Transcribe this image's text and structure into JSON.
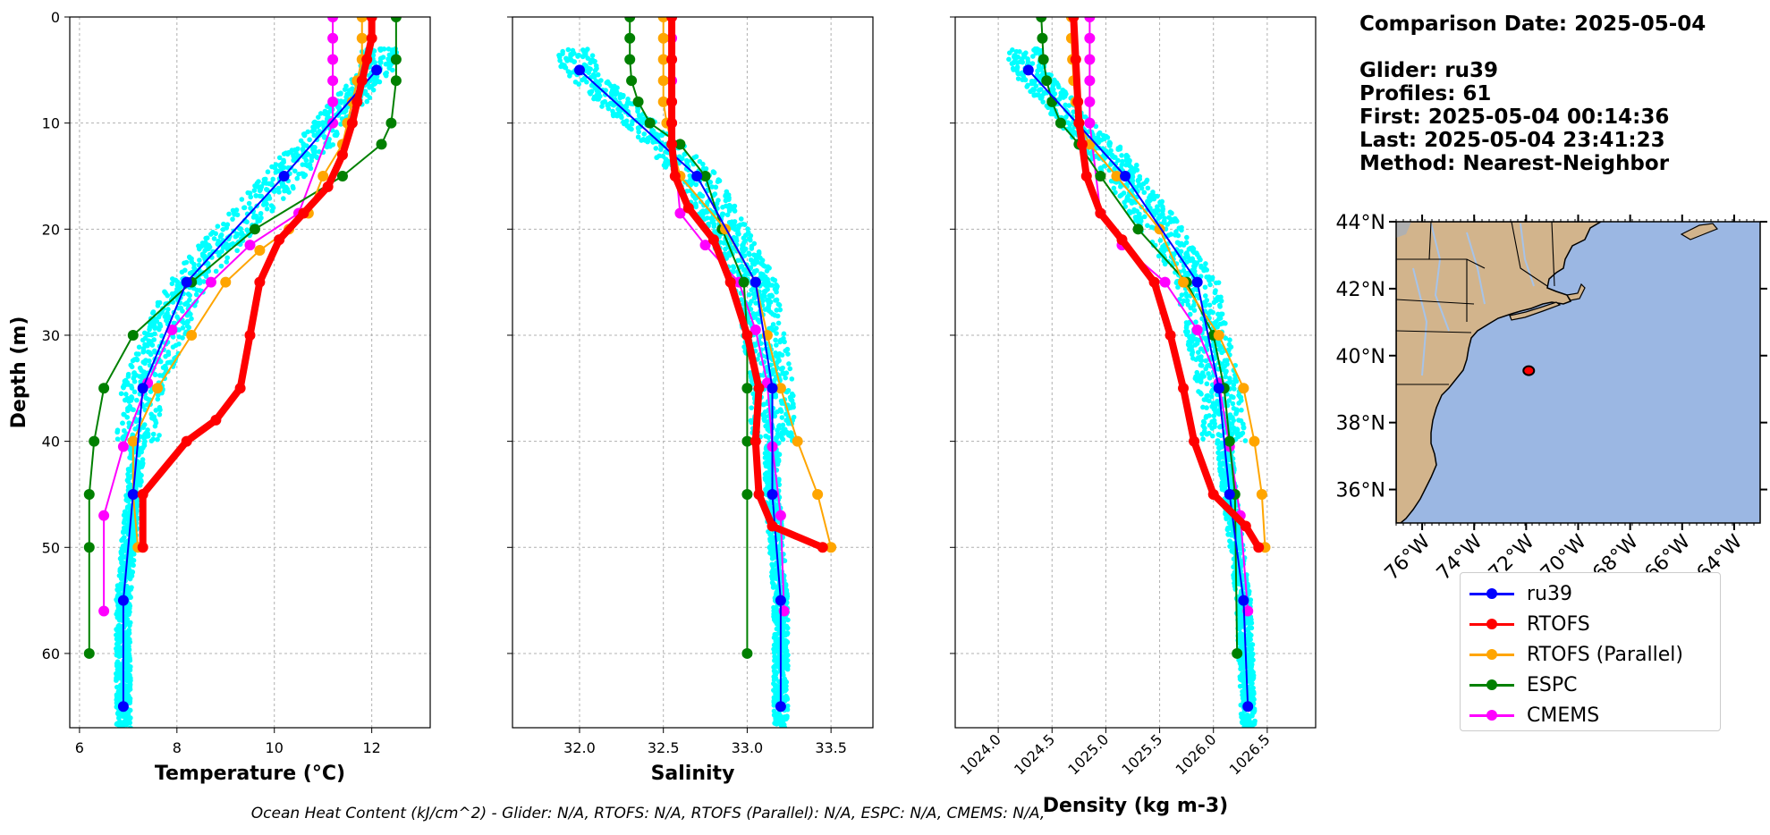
{
  "info": {
    "date_line": "Comparison Date: 2025-05-04",
    "glider_line": "Glider: ru39",
    "profiles_line": "Profiles: 61",
    "first_line": "First: 2025-05-04 00:14:36",
    "last_line": "Last: 2025-05-04 23:41:23",
    "method_line": "Method: Nearest-Neighbor"
  },
  "footer": "Ocean Heat Content (kJ/cm^2) - Glider: N/A,  RTOFS: N/A,  RTOFS (Parallel): N/A,  ESPC: N/A,  CMEMS: N/A,",
  "colors": {
    "ru39": "#0000ff",
    "RTOFS": "#ff0000",
    "RTOFS (Parallel)": "#ffa500",
    "ESPC": "#008000",
    "CMEMS": "#ff00ff",
    "scatter": "#00ffff",
    "land": "#d2b48c",
    "ocean": "#9bb7e3",
    "river": "#a6c3e8"
  },
  "legend": [
    "ru39",
    "RTOFS",
    "RTOFS (Parallel)",
    "ESPC",
    "CMEMS"
  ],
  "chart_data": [
    {
      "type": "line",
      "xlabel": "Temperature (°C)",
      "ylabel": "Depth (m)",
      "xlim": [
        5.8,
        13.2
      ],
      "ylim": [
        67,
        0
      ],
      "xticks": [
        6,
        8,
        10,
        12
      ],
      "yticks": [
        0,
        10,
        20,
        30,
        40,
        50,
        60
      ],
      "grid": true,
      "series": [
        {
          "name": "ru39",
          "x": [
            12.1,
            10.2,
            8.2,
            7.3,
            7.1,
            6.9,
            6.9
          ],
          "y": [
            5,
            15,
            25,
            35,
            45,
            55,
            65
          ]
        },
        {
          "name": "RTOFS",
          "x": [
            12,
            12,
            11.9,
            11.8,
            11.7,
            11.6,
            11.4,
            11.1,
            10.6,
            10.1,
            9.7,
            9.5,
            9.3,
            8.8,
            8.2,
            7.3,
            7.3
          ],
          "y": [
            0,
            2,
            4,
            6,
            8,
            10,
            13,
            16,
            18.5,
            21,
            25,
            30,
            35,
            38,
            40,
            45,
            50
          ]
        },
        {
          "name": "RTOFS (Parallel)",
          "x": [
            11.8,
            11.8,
            11.8,
            11.7,
            11.6,
            11.5,
            11.4,
            11.0,
            10.7,
            10.3,
            9.7,
            9.0,
            8.3,
            7.6,
            7.1,
            7.1,
            7.2
          ],
          "y": [
            0,
            2,
            4,
            6,
            8,
            10,
            12,
            15,
            18.5,
            20,
            22,
            25,
            30,
            35,
            40,
            45,
            50
          ]
        },
        {
          "name": "ESPC",
          "x": [
            12.5,
            12.5,
            12.5,
            12.4,
            12.2,
            11.4,
            9.6,
            8.3,
            7.1,
            6.5,
            6.3,
            6.2,
            6.2,
            6.2
          ],
          "y": [
            0,
            4,
            6,
            10,
            12,
            15,
            20,
            25,
            30,
            35,
            40,
            45,
            50,
            60
          ]
        },
        {
          "name": "CMEMS",
          "x": [
            11.2,
            11.2,
            11.2,
            11.2,
            11.2,
            11.2,
            10.5,
            9.5,
            8.7,
            7.9,
            7.4,
            6.9,
            6.5,
            6.5
          ],
          "y": [
            0,
            2,
            4,
            6,
            8,
            10,
            18.5,
            21.5,
            25,
            29.5,
            34.5,
            40.5,
            47,
            56
          ]
        }
      ]
    },
    {
      "type": "line",
      "xlabel": "Salinity",
      "ylabel": "",
      "xlim": [
        31.6,
        33.75
      ],
      "ylim": [
        67,
        0
      ],
      "xticks": [
        32.0,
        32.5,
        33.0,
        33.5
      ],
      "yticks": [
        0,
        10,
        20,
        30,
        40,
        50,
        60
      ],
      "grid": true,
      "series": [
        {
          "name": "ru39",
          "x": [
            32.0,
            32.7,
            33.05,
            33.15,
            33.15,
            33.2,
            33.2
          ],
          "y": [
            5,
            15,
            25,
            35,
            45,
            55,
            65
          ]
        },
        {
          "name": "RTOFS",
          "x": [
            32.55,
            32.55,
            32.55,
            32.55,
            32.55,
            32.57,
            32.65,
            32.8,
            32.9,
            33.0,
            33.07,
            33.05,
            33.07,
            33.15,
            33.45
          ],
          "y": [
            0,
            4,
            8,
            10,
            12,
            15,
            18,
            21,
            25,
            30,
            35,
            40,
            45,
            48,
            50
          ]
        },
        {
          "name": "RTOFS (Parallel)",
          "x": [
            32.5,
            32.5,
            32.5,
            32.5,
            32.5,
            32.52,
            32.6,
            32.87,
            33.05,
            33.12,
            33.2,
            33.3,
            33.42,
            33.5
          ],
          "y": [
            0,
            2,
            4,
            6,
            8,
            10,
            15,
            20,
            25,
            30,
            35,
            40,
            45,
            50
          ]
        },
        {
          "name": "ESPC",
          "x": [
            32.3,
            32.3,
            32.3,
            32.31,
            32.35,
            32.42,
            32.6,
            32.75,
            32.85,
            32.98,
            33.0,
            33.0,
            33.0,
            33.0,
            33.0
          ],
          "y": [
            0,
            2,
            4,
            6,
            8,
            10,
            12,
            15,
            20,
            25,
            30,
            35,
            40,
            45,
            60
          ]
        },
        {
          "name": "CMEMS",
          "x": [
            32.55,
            32.55,
            32.55,
            32.55,
            32.55,
            32.55,
            32.6,
            32.75,
            32.95,
            33.05,
            33.12,
            33.15,
            33.2,
            33.22
          ],
          "y": [
            0,
            2,
            4,
            6,
            8,
            10,
            18.5,
            21.5,
            25,
            29.5,
            34.5,
            40.5,
            47,
            56
          ]
        }
      ]
    },
    {
      "type": "line",
      "xlabel": "Density (kg m-3)",
      "ylabel": "",
      "xlim": [
        1023.6,
        1026.95
      ],
      "ylim": [
        67,
        0
      ],
      "xticks": [
        1024.0,
        1024.5,
        1025.0,
        1025.5,
        1026.0,
        1026.5
      ],
      "yticks": [
        0,
        10,
        20,
        30,
        40,
        50,
        60
      ],
      "grid": true,
      "series": [
        {
          "name": "ru39",
          "x": [
            1024.28,
            1025.18,
            1025.85,
            1026.05,
            1026.15,
            1026.28,
            1026.32
          ],
          "y": [
            5,
            15,
            25,
            35,
            45,
            55,
            65
          ]
        },
        {
          "name": "RTOFS",
          "x": [
            1024.7,
            1024.72,
            1024.74,
            1024.75,
            1024.78,
            1024.82,
            1024.95,
            1025.15,
            1025.45,
            1025.6,
            1025.72,
            1025.82,
            1026.0,
            1026.3,
            1026.42
          ],
          "y": [
            0,
            4,
            8,
            10,
            12,
            15,
            18.5,
            21,
            25,
            30,
            35,
            40,
            45,
            48,
            50
          ]
        },
        {
          "name": "RTOFS (Parallel)",
          "x": [
            1024.68,
            1024.68,
            1024.69,
            1024.7,
            1024.72,
            1024.75,
            1024.85,
            1025.1,
            1025.5,
            1025.72,
            1026.05,
            1026.28,
            1026.38,
            1026.45,
            1026.48
          ],
          "y": [
            0,
            2,
            4,
            6,
            8,
            10,
            12,
            15,
            20,
            25,
            30,
            35,
            40,
            45,
            50
          ]
        },
        {
          "name": "ESPC",
          "x": [
            1024.4,
            1024.41,
            1024.42,
            1024.45,
            1024.5,
            1024.58,
            1024.75,
            1024.95,
            1025.3,
            1025.75,
            1026.0,
            1026.1,
            1026.15,
            1026.2,
            1026.22
          ],
          "y": [
            0,
            2,
            4,
            6,
            8,
            10,
            12,
            15,
            20,
            25,
            30,
            35,
            40,
            45,
            60
          ]
        },
        {
          "name": "CMEMS",
          "x": [
            1024.85,
            1024.85,
            1024.85,
            1024.85,
            1024.85,
            1024.85,
            1024.95,
            1025.15,
            1025.55,
            1025.85,
            1026.05,
            1026.15,
            1026.25,
            1026.32
          ],
          "y": [
            0,
            2,
            4,
            6,
            8,
            10,
            18.5,
            21.5,
            25,
            29.5,
            34.5,
            40.5,
            47,
            56
          ]
        }
      ]
    }
  ],
  "map": {
    "lat_labels": [
      "44°N",
      "42°N",
      "40°N",
      "38°N",
      "36°N"
    ],
    "lon_labels": [
      "76°W",
      "74°W",
      "72°W",
      "70°W",
      "68°W",
      "66°W",
      "64°W"
    ],
    "lat_range": [
      35,
      44
    ],
    "lon_range": [
      -77,
      -63
    ],
    "glider_position": [
      -71.9,
      39.55
    ]
  }
}
